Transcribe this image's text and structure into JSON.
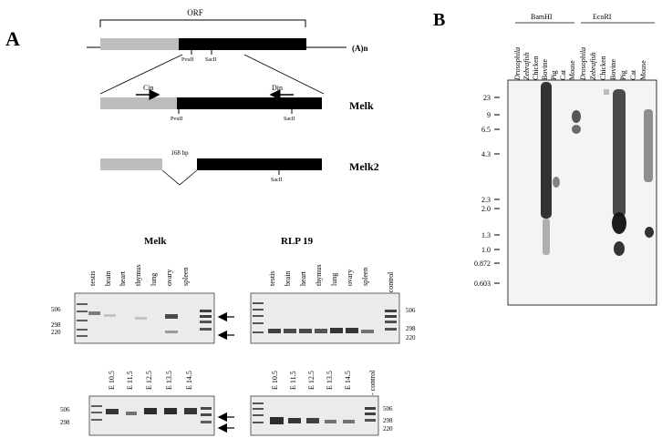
{
  "panel_a": {
    "letter": "A",
    "orf_label": "ORF",
    "polya_label": "(A)n",
    "site_pvuii": "PvuII",
    "site_sacii": "SacII",
    "primer_cin": "Cin",
    "primer_din": "Din",
    "gene_melk": "Melk",
    "gene_melk2": "Melk2",
    "deletion_bp": "168 bp",
    "gel_title_melk": "Melk",
    "gel_title_rlp": "RLP 19",
    "tissues": [
      "testis",
      "brain",
      "heart",
      "thymus",
      "lung",
      "ovary",
      "spleen"
    ],
    "control_label": "- control",
    "stages": [
      "E 10.5",
      "E 11.5",
      "E 12.5",
      "E 13.5",
      "E 14.5"
    ],
    "size_markers": [
      "506",
      "298",
      "220"
    ]
  },
  "panel_b": {
    "letter": "B",
    "enzyme_1": "BamHI",
    "enzyme_2": "EcoRI",
    "species": [
      "Drosophila",
      "Zebrafish",
      "Chicken",
      "Bovine",
      "Pig",
      "Cat",
      "Mouse"
    ],
    "size_markers": [
      "23",
      "9",
      "6.5",
      "4.3",
      "2.3",
      "2.0",
      "1.3",
      "1.0",
      "0.872",
      "0.603"
    ]
  },
  "colors": {
    "orf_light": "#bdbdbd",
    "orf_dark": "#000000",
    "gel_bg": "#ebebeb",
    "blot_bg": "#f4f4f4"
  }
}
